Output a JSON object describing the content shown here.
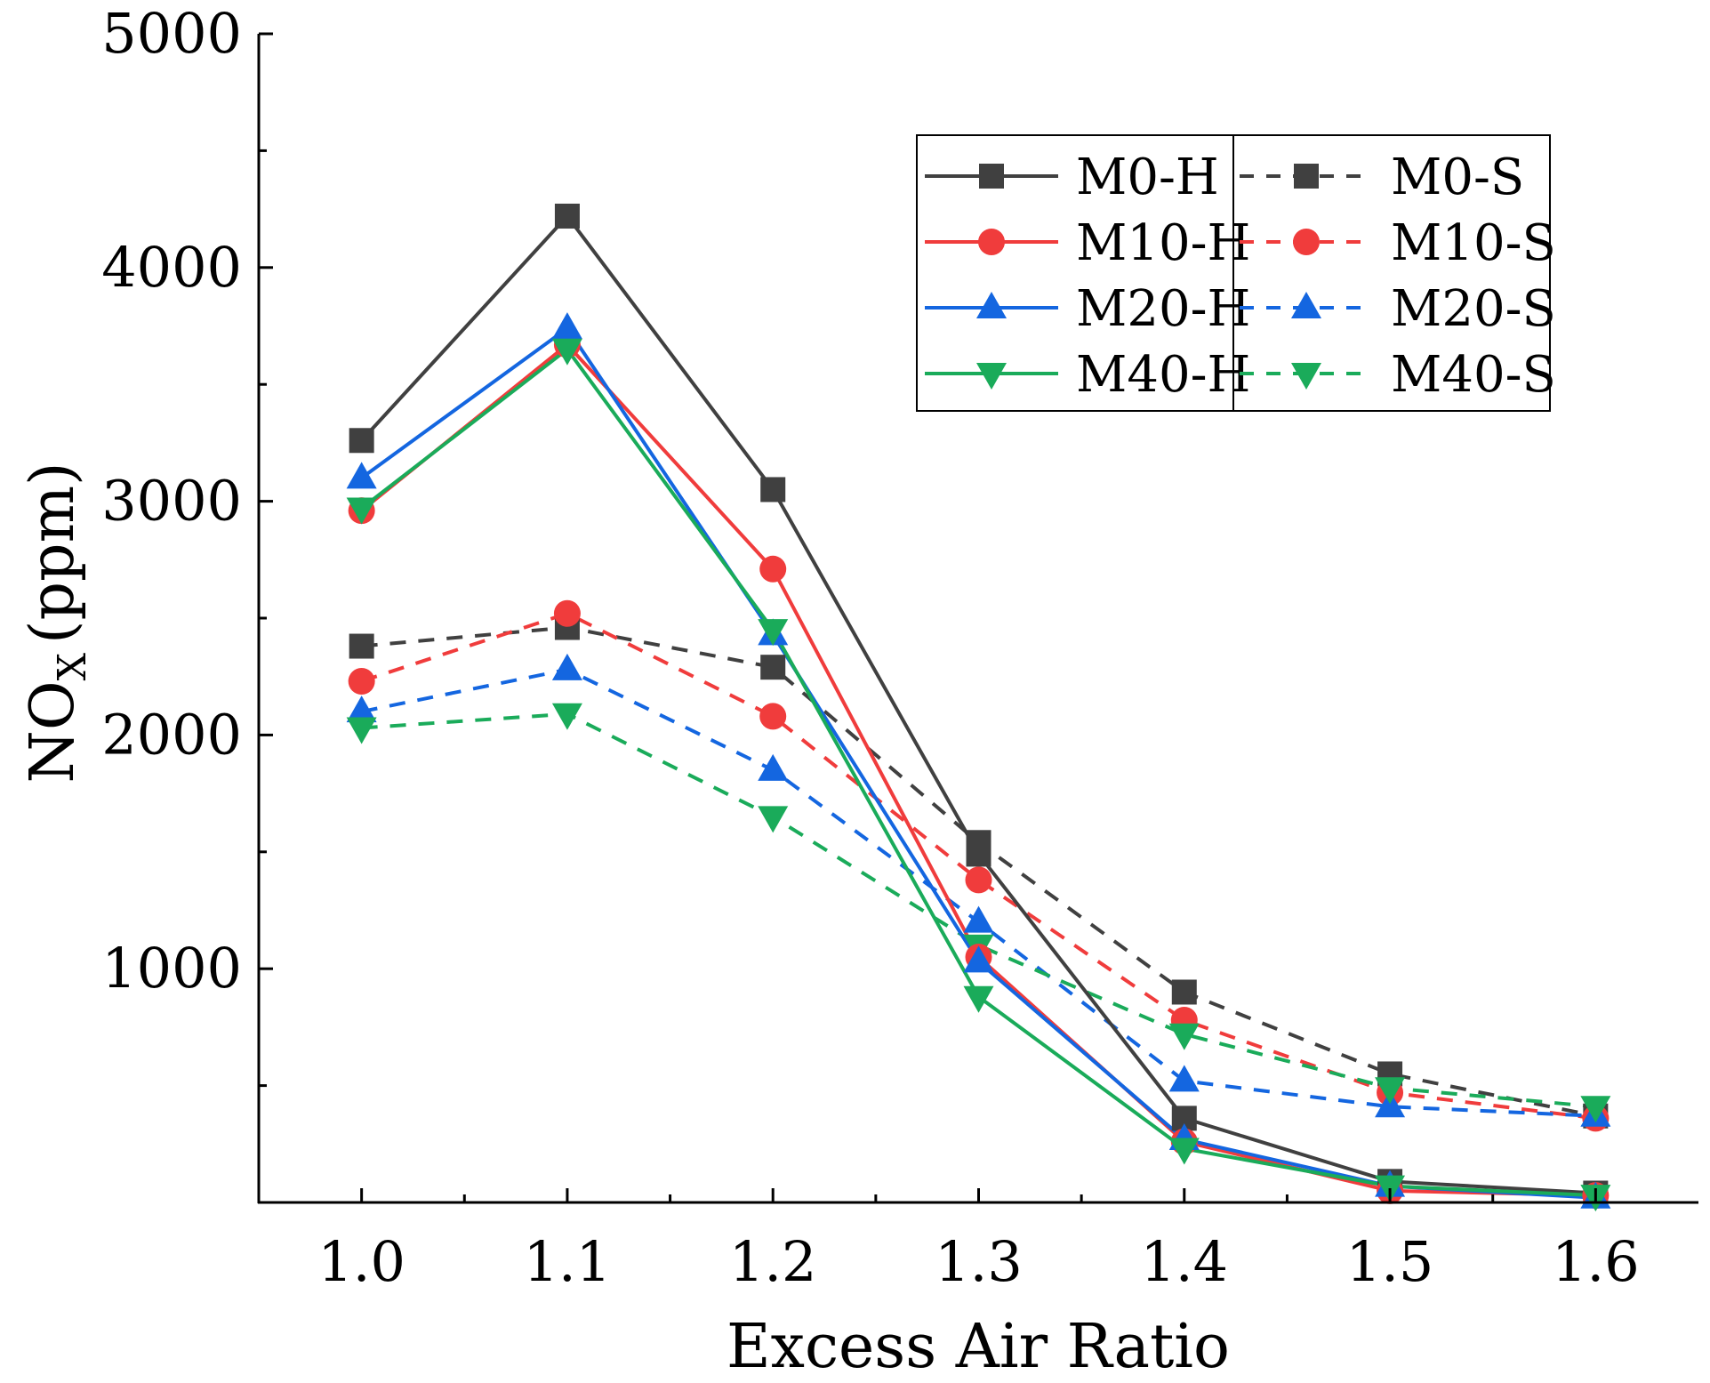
{
  "chart_data": {
    "type": "line",
    "title": "",
    "xlabel": "Excess Air Ratio",
    "ylabel": {
      "main": "NO",
      "sub": "X",
      "units": "(ppm)"
    },
    "x": [
      1.0,
      1.1,
      1.2,
      1.3,
      1.4,
      1.5,
      1.6
    ],
    "x_tick_labels": [
      "1.0",
      "1.1",
      "1.2",
      "1.3",
      "1.4",
      "1.5",
      "1.6"
    ],
    "xlim": [
      0.95,
      1.65
    ],
    "ylim": [
      0,
      5000
    ],
    "y_ticks": [
      1000,
      2000,
      3000,
      4000,
      5000
    ],
    "y_tick_labels": [
      "1000",
      "2000",
      "3000",
      "4000",
      "5000"
    ],
    "y_minor_ticks": [
      500,
      1500,
      2500,
      3500,
      4500
    ],
    "grid": false,
    "legend_position": "top-right",
    "series": [
      {
        "name": "M0-H",
        "color": "#404040",
        "marker": "square",
        "dash": "solid",
        "values": [
          3260,
          4220,
          3050,
          1490,
          360,
          90,
          40
        ]
      },
      {
        "name": "M10-H",
        "color": "#f03c3c",
        "marker": "circle",
        "dash": "solid",
        "values": [
          2960,
          3670,
          2710,
          1050,
          260,
          50,
          30
        ]
      },
      {
        "name": "M20-H",
        "color": "#1466e0",
        "marker": "triangle-up",
        "dash": "solid",
        "values": [
          3100,
          3740,
          2430,
          1030,
          270,
          70,
          20
        ]
      },
      {
        "name": "M40-H",
        "color": "#1aab5a",
        "marker": "triangle-down",
        "dash": "solid",
        "values": [
          2970,
          3650,
          2450,
          880,
          230,
          70,
          30
        ]
      },
      {
        "name": "M0-S",
        "color": "#404040",
        "marker": "square",
        "dash": "dashed",
        "values": [
          2380,
          2460,
          2290,
          1540,
          900,
          550,
          370
        ]
      },
      {
        "name": "M10-S",
        "color": "#f03c3c",
        "marker": "circle",
        "dash": "dashed",
        "values": [
          2230,
          2520,
          2080,
          1380,
          780,
          470,
          360
        ]
      },
      {
        "name": "M20-S",
        "color": "#1466e0",
        "marker": "triangle-up",
        "dash": "dashed",
        "values": [
          2100,
          2280,
          1850,
          1200,
          520,
          410,
          370
        ]
      },
      {
        "name": "M40-S",
        "color": "#1aab5a",
        "marker": "triangle-down",
        "dash": "dashed",
        "values": [
          2030,
          2090,
          1650,
          1100,
          720,
          490,
          410
        ]
      }
    ]
  }
}
